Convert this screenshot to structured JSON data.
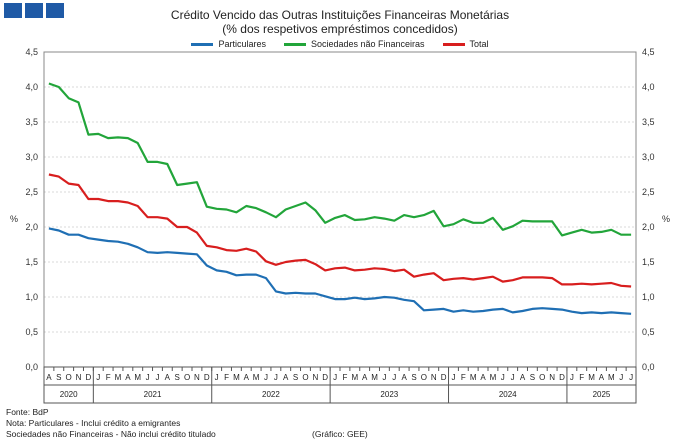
{
  "header": {
    "title": "Crédito Vencido das Outras Instituições Financeiras Monetárias",
    "subtitle": "(% dos respetivos empréstimos concedidos)"
  },
  "footer": {
    "source": "Fonte: BdP",
    "note1": "Nota: Particulares - Inclui crédito a emigrantes",
    "note2": "Sociedades não Financeiras - Não inclui crédito titulado",
    "credit": "(Gráfico: GEE)"
  },
  "chart_data": {
    "type": "line",
    "ylabel_left": "%",
    "ylabel_right": "%",
    "ylim": [
      0,
      4.5
    ],
    "yticks": [
      "0,0",
      "0,5",
      "1,0",
      "1,5",
      "2,0",
      "2,5",
      "3,0",
      "3,5",
      "4,0",
      "4,5"
    ],
    "grid": true,
    "legend_position": "top",
    "x": [
      "A",
      "S",
      "O",
      "N",
      "D",
      "J",
      "F",
      "M",
      "A",
      "M",
      "J",
      "J",
      "A",
      "S",
      "O",
      "N",
      "D",
      "J",
      "F",
      "M",
      "A",
      "M",
      "J",
      "J",
      "A",
      "S",
      "O",
      "N",
      "D",
      "J",
      "F",
      "M",
      "A",
      "M",
      "J",
      "J",
      "A",
      "S",
      "O",
      "N",
      "D",
      "J",
      "F",
      "M",
      "A",
      "M",
      "J",
      "J",
      "A",
      "S",
      "O",
      "N",
      "D",
      "J",
      "F",
      "M",
      "A",
      "M",
      "J",
      "J"
    ],
    "years": [
      {
        "label": "2020",
        "start": 0,
        "end": 4
      },
      {
        "label": "2021",
        "start": 5,
        "end": 16
      },
      {
        "label": "2022",
        "start": 17,
        "end": 28
      },
      {
        "label": "2023",
        "start": 29,
        "end": 40
      },
      {
        "label": "2024",
        "start": 41,
        "end": 52
      },
      {
        "label": "2025",
        "start": 53,
        "end": 59
      }
    ],
    "series": [
      {
        "name": "Particulares",
        "color": "#1f6fb4",
        "values": [
          1.98,
          1.95,
          1.89,
          1.89,
          1.84,
          1.82,
          1.8,
          1.79,
          1.76,
          1.71,
          1.64,
          1.63,
          1.64,
          1.63,
          1.62,
          1.61,
          1.45,
          1.38,
          1.36,
          1.31,
          1.32,
          1.32,
          1.27,
          1.08,
          1.05,
          1.06,
          1.05,
          1.05,
          1.01,
          0.97,
          0.97,
          0.99,
          0.97,
          0.98,
          1.0,
          0.99,
          0.96,
          0.94,
          0.81,
          0.82,
          0.83,
          0.79,
          0.81,
          0.79,
          0.8,
          0.82,
          0.83,
          0.78,
          0.8,
          0.83,
          0.84,
          0.83,
          0.82,
          0.79,
          0.77,
          0.78,
          0.77,
          0.78,
          0.77,
          0.76
        ]
      },
      {
        "name": "Sociedades não Financeiras",
        "color": "#22a53a",
        "values": [
          4.05,
          4.0,
          3.84,
          3.78,
          3.32,
          3.33,
          3.27,
          3.28,
          3.27,
          3.2,
          2.93,
          2.93,
          2.9,
          2.6,
          2.62,
          2.64,
          2.29,
          2.26,
          2.25,
          2.21,
          2.3,
          2.27,
          2.21,
          2.14,
          2.25,
          2.3,
          2.35,
          2.24,
          2.06,
          2.13,
          2.17,
          2.1,
          2.11,
          2.14,
          2.12,
          2.09,
          2.17,
          2.14,
          2.17,
          2.23,
          2.01,
          2.04,
          2.11,
          2.06,
          2.06,
          2.13,
          1.96,
          2.01,
          2.09,
          2.08,
          2.08,
          2.08,
          1.88,
          1.92,
          1.96,
          1.92,
          1.93,
          1.96,
          1.89,
          1.89
        ]
      },
      {
        "name": "Total",
        "color": "#d81e1e",
        "values": [
          2.75,
          2.72,
          2.62,
          2.6,
          2.4,
          2.4,
          2.37,
          2.37,
          2.35,
          2.3,
          2.14,
          2.14,
          2.12,
          2.0,
          2.0,
          1.92,
          1.73,
          1.71,
          1.67,
          1.66,
          1.69,
          1.65,
          1.51,
          1.46,
          1.5,
          1.52,
          1.53,
          1.47,
          1.38,
          1.41,
          1.42,
          1.38,
          1.39,
          1.41,
          1.4,
          1.37,
          1.39,
          1.29,
          1.32,
          1.34,
          1.24,
          1.26,
          1.27,
          1.25,
          1.27,
          1.29,
          1.22,
          1.24,
          1.28,
          1.28,
          1.28,
          1.27,
          1.18,
          1.18,
          1.19,
          1.18,
          1.19,
          1.2,
          1.16,
          1.15
        ]
      }
    ]
  }
}
